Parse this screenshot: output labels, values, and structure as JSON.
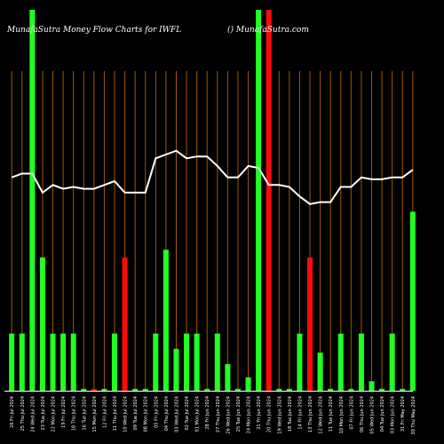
{
  "header": {
    "title": "MunafaSutra  Money Flow  Charts for IWFL",
    "watermark": "() MunafaSutra.com"
  },
  "chart_data": {
    "type": "bar",
    "title": "MunafaSutra  Money Flow  Charts for IWFL",
    "categories": [
      "26 Fri Jul 2024",
      "25 Thu Jul 2024",
      "24 Wed Jul 2024",
      "23 Tue Jul 2024",
      "22 Mon Jul 2024",
      "19 Fri Jul 2024",
      "18 Thu Jul 2024",
      "16 Tue Jul 2024",
      "15 Mon Jul 2024",
      "12 Fri Jul 2024",
      "11 Thu Jul 2024",
      "10 Wed Jul 2024",
      "09 Tue Jul 2024",
      "08 Mon Jul 2024",
      "05 Fri Jul 2024",
      "04 Thu Jul 2024",
      "03 Wed Jul 2024",
      "02 Tue Jul 2024",
      "01 Mon Jul 2024",
      "28 Fri Jun 2024",
      "27 Thu Jun 2024",
      "26 Wed Jun 2024",
      "25 Tue Jun 2024",
      "24 Mon Jun 2024",
      "21 Fri Jun 2024",
      "20 Thu Jun 2024",
      "19 Wed Jun 2024",
      "18 Tue Jun 2024",
      "14 Fri Jun 2024",
      "13 Thu Jun 2024",
      "12 Wed Jun 2024",
      "11 Tue Jun 2024",
      "10 Mon Jun 2024",
      "07 Fri Jun 2024",
      "06 Thu Jun 2024",
      "05 Wed Jun 2024",
      "04 Tue Jun 2024",
      "03 Mon Jun 2024",
      "31 Fri May 2024",
      "30 Thu May 2024"
    ],
    "series": [
      {
        "kind": "bars",
        "values": [
          15,
          15,
          100,
          35,
          15,
          15,
          15,
          0.5,
          0.5,
          0.5,
          15,
          35,
          0.5,
          0.5,
          15,
          37,
          11,
          15,
          15,
          0.5,
          15,
          7,
          0.5,
          3.5,
          100,
          100,
          0.5,
          0.5,
          15,
          35,
          10,
          0.5,
          15,
          0.5,
          15,
          2.5,
          0.5,
          15,
          0.5,
          47
        ],
        "colors": [
          "green",
          "green",
          "green",
          "green",
          "green",
          "green",
          "green",
          "green",
          "red",
          "green",
          "green",
          "red",
          "green",
          "green",
          "green",
          "green",
          "green",
          "green",
          "green",
          "green",
          "green",
          "green",
          "green",
          "green",
          "green",
          "red",
          "green",
          "green",
          "green",
          "red",
          "green",
          "green",
          "green",
          "green",
          "green",
          "green",
          "green",
          "green",
          "green",
          "green"
        ]
      },
      {
        "kind": "line",
        "values": [
          56,
          57,
          57,
          52,
          54,
          53,
          53.5,
          53,
          53,
          54,
          55,
          52,
          52,
          52,
          61,
          62,
          63,
          61,
          61.5,
          61.5,
          59,
          56,
          56,
          59,
          58.5,
          54,
          54,
          53.5,
          51,
          49,
          49.5,
          49.5,
          53.5,
          53.5,
          56,
          55.5,
          55.5,
          56,
          56,
          58
        ]
      }
    ],
    "colors": {
      "green": "#22ff22",
      "red": "#ff0a0a",
      "grid": "#a05a00",
      "line": "#ffffff"
    },
    "ylim": [
      0,
      100
    ],
    "grid": "vertical"
  }
}
